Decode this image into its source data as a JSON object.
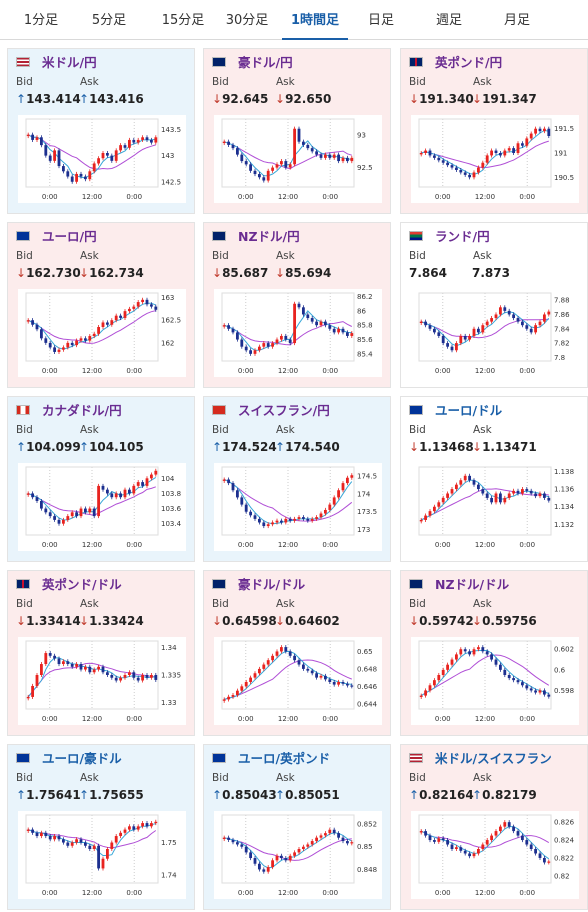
{
  "tabs": [
    {
      "label": "1分足",
      "active": false
    },
    {
      "label": "5分足",
      "active": false
    },
    {
      "label": "15分足",
      "active": false
    },
    {
      "label": "30分足",
      "active": false
    },
    {
      "label": "1時間足",
      "active": true
    },
    {
      "label": "日足",
      "active": false
    },
    {
      "label": "週足",
      "active": false
    },
    {
      "label": "月足",
      "active": false
    }
  ],
  "labels": {
    "bid": "Bid",
    "ask": "Ask"
  },
  "cards": [
    {
      "name": "usd-jpy",
      "title": "米ドル/円",
      "bg": "blue",
      "title_color": "purple",
      "flag": "us-jp",
      "bid": "143.414",
      "ask": "143.416",
      "bid_dir": "up",
      "ask_dir": "up",
      "chart_data": {
        "type": "candlestick",
        "y_ticks": [
          "143.5",
          "143",
          "142.5"
        ],
        "x_ticks": [
          "0:00",
          "12:00",
          "0:00"
        ],
        "ylim": [
          142.4,
          143.7
        ],
        "close": [
          143.4,
          143.3,
          143.35,
          143.2,
          143.0,
          142.9,
          143.1,
          142.8,
          142.7,
          142.6,
          142.5,
          142.65,
          142.6,
          142.55,
          142.7,
          142.85,
          142.95,
          143.05,
          143.0,
          142.9,
          143.1,
          143.2,
          143.15,
          143.3,
          143.25,
          143.3,
          143.35,
          143.3,
          143.25,
          143.35
        ]
      }
    },
    {
      "name": "aud-jpy",
      "title": "豪ドル/円",
      "bg": "pink",
      "title_color": "purple",
      "flag": "au-jp",
      "bid": "92.645",
      "ask": "92.650",
      "bid_dir": "down",
      "ask_dir": "down",
      "chart_data": {
        "type": "candlestick",
        "y_ticks": [
          "93",
          "92.5"
        ],
        "x_ticks": [
          "0:00",
          "12:00",
          "0:00"
        ],
        "ylim": [
          92.2,
          93.25
        ],
        "close": [
          92.9,
          92.85,
          92.8,
          92.7,
          92.6,
          92.55,
          92.45,
          92.4,
          92.35,
          92.3,
          92.45,
          92.5,
          92.55,
          92.6,
          92.5,
          92.55,
          93.1,
          92.9,
          92.85,
          92.8,
          92.75,
          92.7,
          92.65,
          92.7,
          92.65,
          92.7,
          92.6,
          92.65,
          92.6,
          92.65
        ]
      }
    },
    {
      "name": "gbp-jpy",
      "title": "英ポンド/円",
      "bg": "pink",
      "title_color": "purple",
      "flag": "gb-jp",
      "bid": "191.340",
      "ask": "191.347",
      "bid_dir": "down",
      "ask_dir": "down",
      "chart_data": {
        "type": "candlestick",
        "y_ticks": [
          "191.5",
          "191",
          "190.5"
        ],
        "x_ticks": [
          "0:00",
          "12:00",
          "0:00"
        ],
        "ylim": [
          190.3,
          191.7
        ],
        "close": [
          191.0,
          191.05,
          190.95,
          190.9,
          190.85,
          190.8,
          190.75,
          190.7,
          190.65,
          190.6,
          190.55,
          190.5,
          190.6,
          190.7,
          190.8,
          190.95,
          191.05,
          191.0,
          190.95,
          191.05,
          191.1,
          191.0,
          191.2,
          191.15,
          191.3,
          191.4,
          191.5,
          191.45,
          191.5,
          191.35
        ]
      }
    },
    {
      "name": "eur-jpy",
      "title": "ユーロ/円",
      "bg": "pink",
      "title_color": "purple",
      "flag": "eu-jp",
      "bid": "162.730",
      "ask": "162.734",
      "bid_dir": "down",
      "ask_dir": "down",
      "chart_data": {
        "type": "candlestick",
        "y_ticks": [
          "163",
          "162.5",
          "162"
        ],
        "x_ticks": [
          "0:00",
          "12:00",
          "0:00"
        ],
        "ylim": [
          161.6,
          163.1
        ],
        "close": [
          162.5,
          162.4,
          162.3,
          162.1,
          162.0,
          161.9,
          161.8,
          161.85,
          161.9,
          162.0,
          161.95,
          162.05,
          162.1,
          162.05,
          162.15,
          162.2,
          162.35,
          162.45,
          162.4,
          162.5,
          162.6,
          162.55,
          162.7,
          162.75,
          162.8,
          162.9,
          162.95,
          162.85,
          162.8,
          162.73
        ]
      }
    },
    {
      "name": "nzd-jpy",
      "title": "NZドル/円",
      "bg": "pink",
      "title_color": "purple",
      "flag": "nz-jp",
      "bid": "85.687",
      "ask": "85.694",
      "bid_dir": "down",
      "ask_dir": "down",
      "chart_data": {
        "type": "candlestick",
        "y_ticks": [
          "86.2",
          "86",
          "85.8",
          "85.6",
          "85.4"
        ],
        "x_ticks": [
          "0:00",
          "12:00",
          "0:00"
        ],
        "ylim": [
          85.3,
          86.25
        ],
        "close": [
          85.8,
          85.75,
          85.7,
          85.6,
          85.5,
          85.45,
          85.4,
          85.45,
          85.5,
          85.55,
          85.5,
          85.55,
          85.6,
          85.65,
          85.6,
          85.55,
          86.1,
          86.05,
          85.95,
          85.9,
          85.85,
          85.8,
          85.85,
          85.8,
          85.75,
          85.7,
          85.75,
          85.7,
          85.65,
          85.69
        ]
      }
    },
    {
      "name": "zar-jpy",
      "title": "ランド/円",
      "bg": "white",
      "title_color": "purple",
      "flag": "za-jp",
      "bid": "7.864",
      "ask": "7.873",
      "bid_dir": "none",
      "ask_dir": "none",
      "chart_data": {
        "type": "candlestick",
        "y_ticks": [
          "7.88",
          "7.86",
          "7.84",
          "7.82",
          "7.8"
        ],
        "x_ticks": [
          "0:00",
          "12:00",
          "0:00"
        ],
        "ylim": [
          7.795,
          7.89
        ],
        "close": [
          7.85,
          7.845,
          7.84,
          7.835,
          7.83,
          7.82,
          7.815,
          7.81,
          7.82,
          7.83,
          7.825,
          7.83,
          7.84,
          7.835,
          7.845,
          7.85,
          7.855,
          7.86,
          7.87,
          7.865,
          7.86,
          7.855,
          7.85,
          7.845,
          7.84,
          7.835,
          7.845,
          7.85,
          7.86,
          7.864
        ]
      }
    },
    {
      "name": "cad-jpy",
      "title": "カナダドル/円",
      "bg": "blue",
      "title_color": "purple",
      "flag": "ca-jp",
      "bid": "104.099",
      "ask": "104.105",
      "bid_dir": "up",
      "ask_dir": "up",
      "chart_data": {
        "type": "candlestick",
        "y_ticks": [
          "104",
          "103.8",
          "103.6",
          "103.4"
        ],
        "x_ticks": [
          "0:00",
          "12:00",
          "0:00"
        ],
        "ylim": [
          103.25,
          104.15
        ],
        "close": [
          103.8,
          103.75,
          103.7,
          103.6,
          103.55,
          103.5,
          103.45,
          103.4,
          103.45,
          103.5,
          103.55,
          103.5,
          103.6,
          103.55,
          103.6,
          103.5,
          103.9,
          103.85,
          103.8,
          103.75,
          103.8,
          103.75,
          103.85,
          103.8,
          103.9,
          103.95,
          103.9,
          104.0,
          104.05,
          104.1
        ]
      }
    },
    {
      "name": "chf-jpy",
      "title": "スイスフラン/円",
      "bg": "blue",
      "title_color": "purple",
      "flag": "ch-jp",
      "bid": "174.524",
      "ask": "174.540",
      "bid_dir": "up",
      "ask_dir": "up",
      "chart_data": {
        "type": "candlestick",
        "y_ticks": [
          "174.5",
          "174",
          "173.5",
          "173"
        ],
        "x_ticks": [
          "0:00",
          "12:00",
          "0:00"
        ],
        "ylim": [
          172.85,
          174.75
        ],
        "close": [
          174.4,
          174.3,
          174.1,
          173.9,
          173.7,
          173.5,
          173.4,
          173.3,
          173.2,
          173.1,
          173.15,
          173.2,
          173.25,
          173.2,
          173.3,
          173.25,
          173.3,
          173.35,
          173.3,
          173.25,
          173.3,
          173.35,
          173.45,
          173.55,
          173.7,
          173.9,
          174.1,
          174.3,
          174.45,
          174.52
        ]
      }
    },
    {
      "name": "eur-usd",
      "title": "ユーロ/ドル",
      "bg": "white",
      "title_color": "blue",
      "flag": "eu-us",
      "bid": "1.13468",
      "ask": "1.13471",
      "bid_dir": "down",
      "ask_dir": "down",
      "chart_data": {
        "type": "candlestick",
        "y_ticks": [
          "1.138",
          "1.136",
          "1.134",
          "1.132"
        ],
        "x_ticks": [
          "0:00",
          "12:00",
          "0:00"
        ],
        "ylim": [
          1.1308,
          1.1385
        ],
        "close": [
          1.1325,
          1.133,
          1.1335,
          1.134,
          1.1345,
          1.135,
          1.1355,
          1.136,
          1.1365,
          1.137,
          1.1375,
          1.137,
          1.1365,
          1.136,
          1.1355,
          1.135,
          1.1345,
          1.1355,
          1.1345,
          1.135,
          1.1355,
          1.1358,
          1.1355,
          1.136,
          1.1358,
          1.1355,
          1.1352,
          1.1355,
          1.135,
          1.1347
        ]
      }
    },
    {
      "name": "gbp-usd",
      "title": "英ポンド/ドル",
      "bg": "pink",
      "title_color": "purple",
      "flag": "gb-us",
      "bid": "1.33414",
      "ask": "1.33424",
      "bid_dir": "down",
      "ask_dir": "down",
      "chart_data": {
        "type": "candlestick",
        "y_ticks": [
          "1.34",
          "1.335",
          "1.33"
        ],
        "x_ticks": [
          "0:00",
          "12:00",
          "0:00"
        ],
        "ylim": [
          1.3288,
          1.3412
        ],
        "close": [
          1.331,
          1.333,
          1.335,
          1.337,
          1.339,
          1.3385,
          1.338,
          1.337,
          1.3375,
          1.337,
          1.3365,
          1.337,
          1.336,
          1.3365,
          1.3355,
          1.336,
          1.3365,
          1.3355,
          1.335,
          1.3345,
          1.334,
          1.3345,
          1.335,
          1.3355,
          1.3345,
          1.334,
          1.335,
          1.3345,
          1.335,
          1.3341
        ]
      }
    },
    {
      "name": "aud-usd",
      "title": "豪ドル/ドル",
      "bg": "pink",
      "title_color": "purple",
      "flag": "au-us",
      "bid": "0.64598",
      "ask": "0.64602",
      "bid_dir": "down",
      "ask_dir": "down",
      "chart_data": {
        "type": "candlestick",
        "y_ticks": [
          "0.65",
          "0.648",
          "0.646",
          "0.644"
        ],
        "x_ticks": [
          "0:00",
          "12:00",
          "0:00"
        ],
        "ylim": [
          0.6434,
          0.6512
        ],
        "close": [
          0.6445,
          0.6448,
          0.645,
          0.6455,
          0.646,
          0.6465,
          0.647,
          0.6475,
          0.648,
          0.6485,
          0.649,
          0.6495,
          0.65,
          0.6505,
          0.65,
          0.6495,
          0.649,
          0.6485,
          0.648,
          0.6478,
          0.6475,
          0.647,
          0.6472,
          0.6468,
          0.6465,
          0.6462,
          0.6465,
          0.6463,
          0.6461,
          0.646
        ]
      }
    },
    {
      "name": "nzd-usd",
      "title": "NZドル/ドル",
      "bg": "pink",
      "title_color": "purple",
      "flag": "nz-us",
      "bid": "0.59742",
      "ask": "0.59756",
      "bid_dir": "down",
      "ask_dir": "down",
      "chart_data": {
        "type": "candlestick",
        "y_ticks": [
          "0.602",
          "0.6",
          "0.598"
        ],
        "x_ticks": [
          "0:00",
          "12:00",
          "0:00"
        ],
        "ylim": [
          0.5962,
          0.6028
        ],
        "close": [
          0.5975,
          0.598,
          0.5985,
          0.599,
          0.5995,
          0.6,
          0.6005,
          0.601,
          0.6015,
          0.602,
          0.6018,
          0.6015,
          0.602,
          0.6022,
          0.6018,
          0.6015,
          0.601,
          0.6005,
          0.6,
          0.5995,
          0.5992,
          0.599,
          0.5988,
          0.5985,
          0.5982,
          0.598,
          0.5978,
          0.598,
          0.5976,
          0.5974
        ]
      }
    },
    {
      "name": "eur-aud",
      "title": "ユーロ/豪ドル",
      "bg": "blue",
      "title_color": "blue",
      "flag": "eu-au",
      "bid": "1.75641",
      "ask": "1.75655",
      "bid_dir": "up",
      "ask_dir": "up",
      "chart_data": {
        "type": "candlestick",
        "y_ticks": [
          "1.75",
          "1.74"
        ],
        "x_ticks": [
          "0:00",
          "12:00",
          "0:00"
        ],
        "ylim": [
          1.7375,
          1.7585
        ],
        "close": [
          1.754,
          1.753,
          1.752,
          1.753,
          1.752,
          1.751,
          1.752,
          1.751,
          1.75,
          1.749,
          1.75,
          1.751,
          1.75,
          1.749,
          1.748,
          1.749,
          1.742,
          1.745,
          1.748,
          1.75,
          1.752,
          1.753,
          1.754,
          1.755,
          1.754,
          1.755,
          1.756,
          1.755,
          1.756,
          1.7564
        ]
      }
    },
    {
      "name": "eur-gbp",
      "title": "ユーロ/英ポンド",
      "bg": "blue",
      "title_color": "blue",
      "flag": "eu-gb",
      "bid": "0.85043",
      "ask": "0.85051",
      "bid_dir": "up",
      "ask_dir": "up",
      "chart_data": {
        "type": "candlestick",
        "y_ticks": [
          "0.852",
          "0.85",
          "0.848"
        ],
        "x_ticks": [
          "0:00",
          "12:00",
          "0:00"
        ],
        "ylim": [
          0.8468,
          0.8528
        ],
        "close": [
          0.8508,
          0.8506,
          0.8504,
          0.8502,
          0.85,
          0.8495,
          0.849,
          0.8485,
          0.848,
          0.8478,
          0.8482,
          0.8488,
          0.8492,
          0.849,
          0.8488,
          0.8492,
          0.8495,
          0.8498,
          0.85,
          0.8502,
          0.8505,
          0.8508,
          0.851,
          0.8512,
          0.8515,
          0.8512,
          0.8508,
          0.8505,
          0.8503,
          0.8504
        ]
      }
    },
    {
      "name": "usd-chf",
      "title": "米ドル/スイスフラン",
      "bg": "pink",
      "title_color": "blue",
      "flag": "us-ch",
      "bid": "0.82164",
      "ask": "0.82179",
      "bid_dir": "up",
      "ask_dir": "up",
      "chart_data": {
        "type": "candlestick",
        "y_ticks": [
          "0.826",
          "0.824",
          "0.822",
          "0.82"
        ],
        "x_ticks": [
          "0:00",
          "12:00",
          "0:00"
        ],
        "ylim": [
          0.8192,
          0.8268
        ],
        "close": [
          0.825,
          0.8245,
          0.824,
          0.8238,
          0.8242,
          0.824,
          0.8235,
          0.823,
          0.8232,
          0.8228,
          0.8225,
          0.8222,
          0.8225,
          0.823,
          0.8235,
          0.824,
          0.8245,
          0.825,
          0.8255,
          0.826,
          0.8255,
          0.825,
          0.8245,
          0.824,
          0.8235,
          0.823,
          0.8225,
          0.822,
          0.8215,
          0.8216
        ]
      }
    }
  ]
}
